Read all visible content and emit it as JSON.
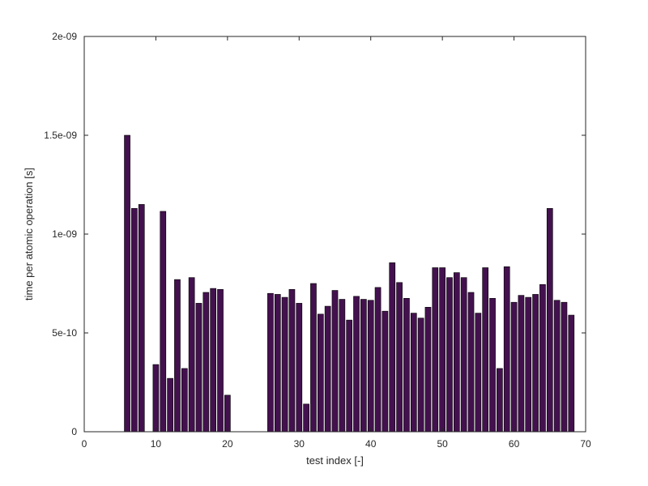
{
  "chart_data": {
    "type": "bar",
    "title": "",
    "xlabel": "test index [-]",
    "ylabel": "time per atomic operation [s]",
    "xlim": [
      0,
      70
    ],
    "ylim": [
      0,
      2e-09
    ],
    "grid": false,
    "bar_color": "#44114f",
    "x_ticks": [
      0,
      10,
      20,
      30,
      40,
      50,
      60,
      70
    ],
    "x_tick_labels": [
      "0",
      "10",
      "20",
      "30",
      "40",
      "50",
      "60",
      "70"
    ],
    "y_ticks": [
      0,
      5e-10,
      1e-09,
      1.5e-09,
      2e-09
    ],
    "y_tick_labels": [
      "0",
      "5e-10",
      "1e-09",
      "1.5e-09",
      "2e-09"
    ],
    "x": [
      6,
      7,
      8,
      10,
      11,
      12,
      13,
      14,
      15,
      16,
      17,
      18,
      19,
      20,
      26,
      27,
      28,
      29,
      30,
      31,
      32,
      33,
      34,
      35,
      36,
      37,
      38,
      39,
      40,
      41,
      42,
      43,
      44,
      45,
      46,
      47,
      48,
      49,
      50,
      51,
      52,
      53,
      54,
      55,
      56,
      57,
      58,
      59,
      60,
      61,
      62,
      63,
      64,
      65,
      66,
      67,
      68
    ],
    "values": [
      1.5e-09,
      1.13e-09,
      1.15e-09,
      3.4e-10,
      1.115e-09,
      2.7e-10,
      7.7e-10,
      3.2e-10,
      7.8e-10,
      6.5e-10,
      7.05e-10,
      7.25e-10,
      7.2e-10,
      1.85e-10,
      7e-10,
      6.95e-10,
      6.8e-10,
      7.2e-10,
      6.5e-10,
      1.4e-10,
      7.5e-10,
      5.95e-10,
      6.35e-10,
      7.15e-10,
      6.7e-10,
      5.65e-10,
      6.85e-10,
      6.7e-10,
      6.65e-10,
      7.3e-10,
      6.1e-10,
      8.55e-10,
      7.55e-10,
      6.75e-10,
      6e-10,
      5.75e-10,
      6.3e-10,
      8.3e-10,
      8.3e-10,
      7.8e-10,
      8.05e-10,
      7.8e-10,
      7.05e-10,
      6e-10,
      8.3e-10,
      6.75e-10,
      3.2e-10,
      8.35e-10,
      6.55e-10,
      6.9e-10,
      6.8e-10,
      6.95e-10,
      7.45e-10,
      1.13e-09,
      6.65e-10,
      6.55e-10,
      5.9e-10
    ]
  }
}
